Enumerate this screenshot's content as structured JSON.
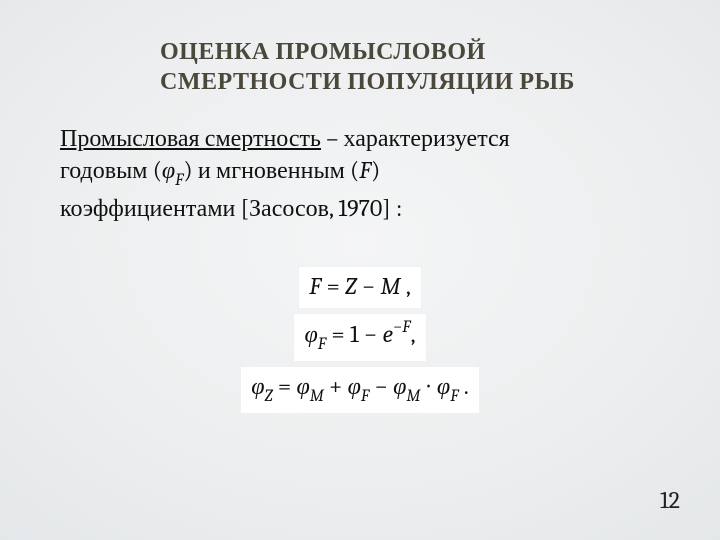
{
  "title_line1": "ОЦЕНКА  ПРОМЫСЛОВОЙ",
  "title_line2": "СМЕРТНОСТИ  ПОПУЛЯЦИИ  РЫБ",
  "body": {
    "term": "Промысловая смертность",
    "dash": " – характеризуется",
    "rest1": "годовым (",
    "phi": "φ",
    "phiSub": "F",
    "rest2": ") и мгновенным (",
    "F": "F",
    "rest3": ")",
    "rest4": "коэффициентами [Засосов, 1970] :"
  },
  "formulas": {
    "f1": {
      "lhs_var": "F",
      "eq": " = ",
      "rhs_a": "Z",
      "minus": " − ",
      "rhs_b": "M",
      "comma": " ,"
    },
    "f2": {
      "lhs_var": "φ",
      "lhs_sub": "F",
      "eq": " = 1 − ",
      "e": "e",
      "exp_neg": "−",
      "exp_var": "F",
      "comma": ","
    },
    "f3": {
      "phi": "φ",
      "Z": "Z",
      "eq": " = ",
      "M": "M",
      "plus": " + ",
      "F": "F",
      "minus": " − ",
      "dot": " ∙ ",
      "period": " ."
    }
  },
  "page_number": "12"
}
